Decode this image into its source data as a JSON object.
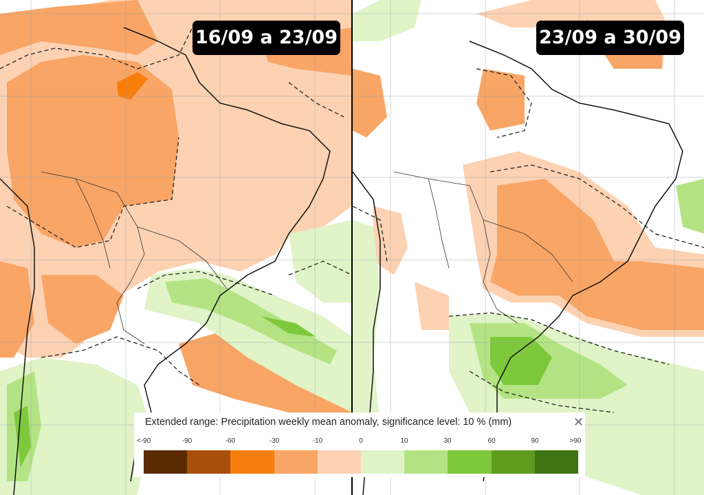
{
  "panels": [
    {
      "period": "16/09 a 23/09"
    },
    {
      "period": "23/09 a 30/09"
    }
  ],
  "legend": {
    "title": "Extended range: Precipitation weekly mean anomaly, significance level: 10 % (mm)",
    "labels": [
      "<-90",
      "-90",
      "-60",
      "-30",
      "-10",
      "0",
      "10",
      "30",
      "60",
      "90",
      ">90"
    ],
    "colors": [
      "#5a2a00",
      "#a94f0c",
      "#f77d0c",
      "#f9a566",
      "#fcd2b2",
      "#ffffff",
      "#e0f4c8",
      "#b4e384",
      "#7ec83c",
      "#5e9c1e",
      "#3f7412"
    ],
    "close_icon": "close-icon"
  }
}
